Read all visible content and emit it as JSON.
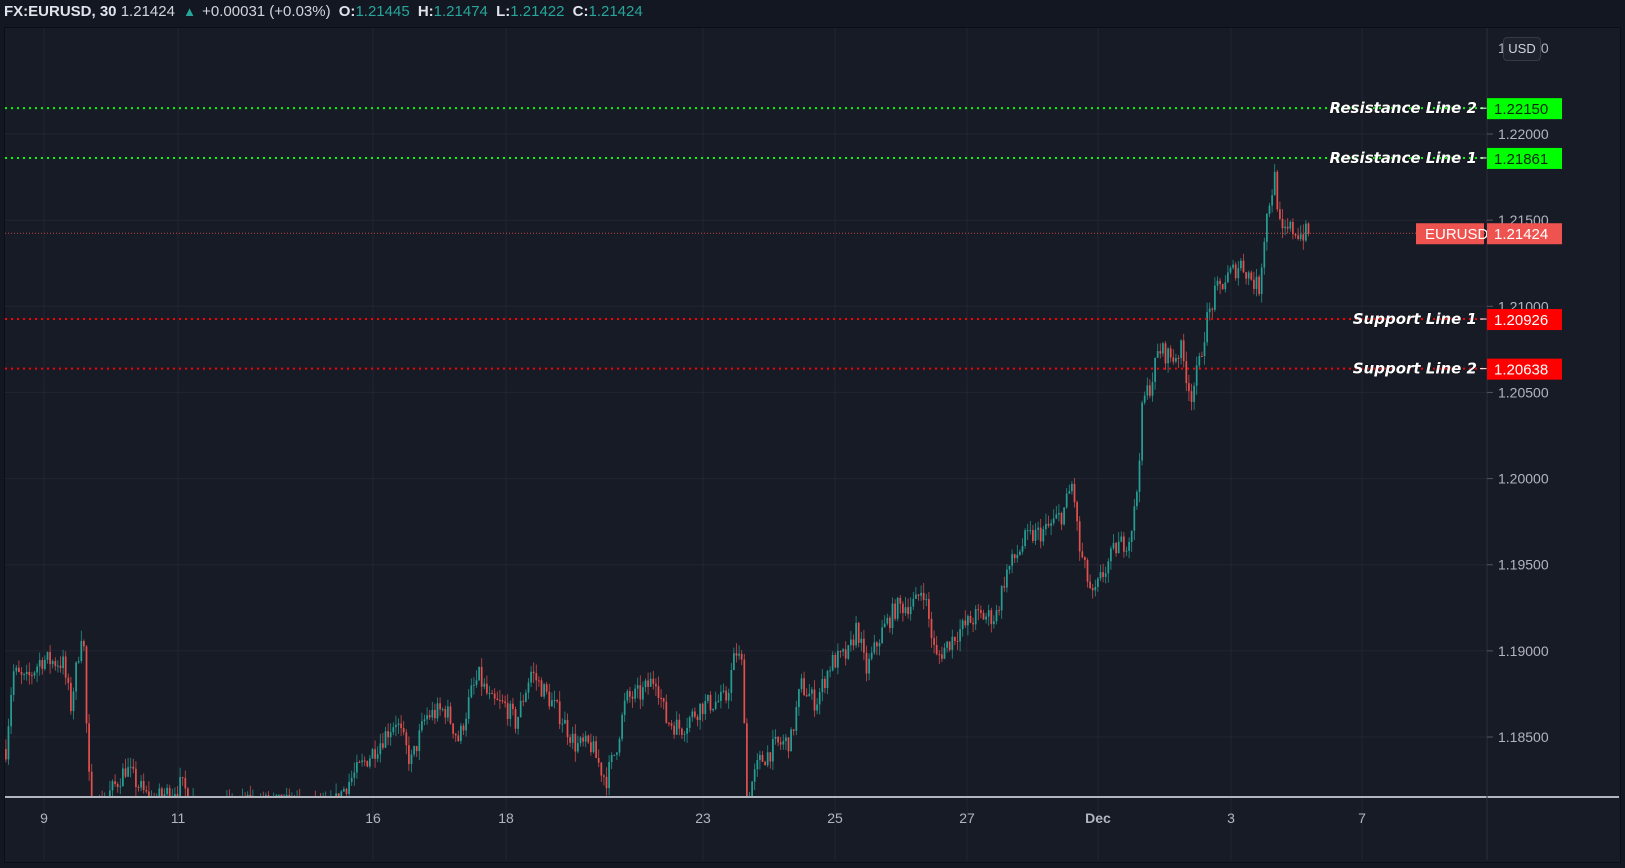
{
  "header": {
    "symbol": "FX:EURUSD, 30",
    "last": "1.21424",
    "change": "+0.00031 (+0.03%)",
    "o_label": "O:",
    "o": "1.21445",
    "h_label": "H:",
    "h": "1.21474",
    "l_label": "L:",
    "l": "1.21422",
    "c_label": "C:",
    "c": "1.21424"
  },
  "currency_button": "USD",
  "price_tag": {
    "name": "EURUSD",
    "value": "1.21424",
    "color": "#ef5350"
  },
  "levels": [
    {
      "label": "Resistance Line 2",
      "value": "1.22150",
      "color": "#00ff00"
    },
    {
      "label": "Resistance Line 1",
      "value": "1.21861",
      "color": "#00ff00"
    },
    {
      "label": "Support Line 1",
      "value": "1.20926",
      "color": "#ff0000"
    },
    {
      "label": "Support Line 2",
      "value": "1.20638",
      "color": "#ff0000"
    }
  ],
  "colors": {
    "up": "#26a69a",
    "down": "#ef5350",
    "background": "#171b26",
    "grid": "#232632"
  },
  "chart_data": {
    "type": "candlestick",
    "title": "FX:EURUSD, 30",
    "timeframe": "30 min",
    "xlabel": "",
    "ylabel": "USD",
    "x_ticks": [
      "9",
      "11",
      "16",
      "18",
      "23",
      "25",
      "27",
      "Dec",
      "3",
      "7"
    ],
    "y_ticks": [
      "1.18500",
      "1.19000",
      "1.19500",
      "1.20000",
      "1.20500",
      "1.21000",
      "1.21500",
      "1.22000"
    ],
    "ylim": [
      1.181,
      1.224
    ],
    "grid": true,
    "last_price": 1.21424,
    "ohlc_last": {
      "open": 1.21445,
      "high": 1.21474,
      "low": 1.21422,
      "close": 1.21424
    },
    "horizontal_lines": [
      {
        "label": "Resistance Line 2",
        "value": 1.2215
      },
      {
        "label": "Resistance Line 1",
        "value": 1.21861
      },
      {
        "label": "Support Line 1",
        "value": 1.20926
      },
      {
        "label": "Support Line 2",
        "value": 1.20638
      }
    ],
    "price_path_keypoints": [
      {
        "x_label": "9",
        "price": 1.1885
      },
      {
        "x_label": "10",
        "price": 1.1895
      },
      {
        "x_label": "10",
        "price": 1.1918
      },
      {
        "x_label": "10",
        "price": 1.18
      },
      {
        "x_label": "11",
        "price": 1.182
      },
      {
        "x_label": "13",
        "price": 1.18
      },
      {
        "x_label": "16",
        "price": 1.185
      },
      {
        "x_label": "17",
        "price": 1.1868
      },
      {
        "x_label": "18",
        "price": 1.1878
      },
      {
        "x_label": "19",
        "price": 1.189
      },
      {
        "x_label": "20",
        "price": 1.1825
      },
      {
        "x_label": "20",
        "price": 1.1875
      },
      {
        "x_label": "23",
        "price": 1.19
      },
      {
        "x_label": "23",
        "price": 1.181
      },
      {
        "x_label": "24",
        "price": 1.185
      },
      {
        "x_label": "25",
        "price": 1.189
      },
      {
        "x_label": "26",
        "price": 1.1928
      },
      {
        "x_label": "27",
        "price": 1.1912
      },
      {
        "x_label": "28",
        "price": 1.1975
      },
      {
        "x_label": "29",
        "price": 1.1998
      },
      {
        "x_label": "30",
        "price": 1.193
      },
      {
        "x_label": "Dec",
        "price": 1.196
      },
      {
        "x_label": "1",
        "price": 1.2055
      },
      {
        "x_label": "2",
        "price": 1.2075
      },
      {
        "x_label": "2",
        "price": 1.2045
      },
      {
        "x_label": "2",
        "price": 1.2115
      },
      {
        "x_label": "3",
        "price": 1.211
      },
      {
        "x_label": "3",
        "price": 1.2175
      },
      {
        "x_label": "4",
        "price": 1.2142
      }
    ]
  }
}
